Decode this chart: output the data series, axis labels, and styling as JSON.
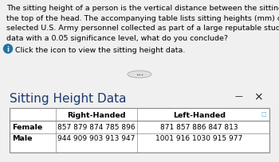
{
  "title": "Sitting Height Data",
  "paragraph_lines": [
    "The sitting height of a person is the vertical distance between the sitting surface and",
    "the top of the head. The accompanying table lists sitting heights (mm) of randomly",
    "selected U.S. Army personnel collected as part of a large reputable study. Using the",
    "data with a 0.05 significance level, what do you conclude?"
  ],
  "info_text": "Click the icon to view the sitting height data.",
  "col_headers": [
    "Right-Handed",
    "Left-Handed"
  ],
  "row_headers": [
    "Female",
    "Male"
  ],
  "data": [
    [
      "857 879 874 785 896",
      "871 857 886 847 813"
    ],
    [
      "944 909 903 913 947",
      "1001 916 1030 915 977"
    ]
  ],
  "bg_top": "#f0f0f0",
  "bg_bottom": "#ffffff",
  "title_color": "#1c3a6b",
  "border_color": "#888888",
  "separator_top_color": "#7ec8e3",
  "separator_bot_color": "#4aa8cc",
  "text_color": "#000000",
  "info_icon_color": "#2472a4",
  "minus_color": "#222222",
  "x_color": "#222222",
  "ellipsis_bg": "#e0e0e0",
  "ellipsis_border": "#aaaaaa"
}
